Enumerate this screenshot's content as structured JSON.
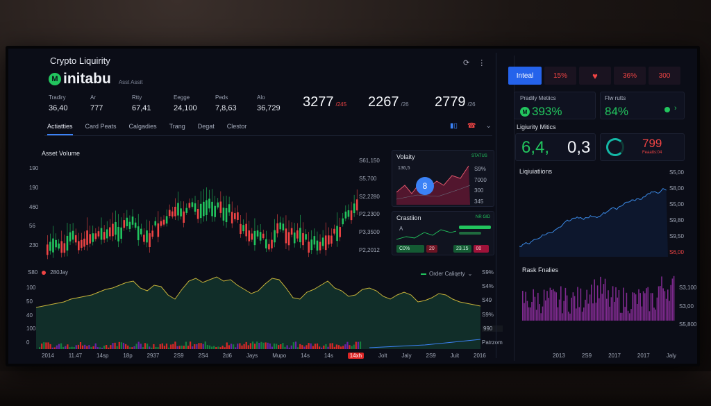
{
  "app": {
    "title": "Crypto Liquirity",
    "brand": "initabu",
    "brand_logo_glyph": "M",
    "brand_subtitle": "Asst Assit",
    "header_icons": [
      "refresh-icon",
      "more-icon"
    ]
  },
  "stats": [
    {
      "label": "Tradiry",
      "value": "36,40"
    },
    {
      "label": "Ar",
      "value": "777"
    },
    {
      "label": "Rtty",
      "value": "67,41"
    },
    {
      "label": "Eegge",
      "value": "24,100"
    },
    {
      "label": "Peds",
      "value": "7,8,63"
    },
    {
      "label": "Alo",
      "value": "36,729"
    }
  ],
  "big_stats": [
    {
      "value": "3277",
      "suffix": "/245",
      "suffix_color": "#ef4444"
    },
    {
      "value": "2267",
      "suffix": "/26"
    },
    {
      "value": "2779",
      "suffix": "/26"
    }
  ],
  "tabs": [
    "Actiatties",
    "Card Peats",
    "Calgadies",
    "Trang",
    "Degat",
    "Clestor"
  ],
  "tab_icons": [
    "signal-icon",
    "phone-icon",
    "chevron-down-icon"
  ],
  "main_chart": {
    "title": "Asset Volume",
    "y_left": [
      "190",
      "190",
      "460",
      "56",
      "230"
    ],
    "y_right": [
      "S61,150",
      "S5,700",
      "S2,2280",
      "P2,2300",
      "P3,3500",
      "P2,2012"
    ]
  },
  "volatility": {
    "title": "Volaity",
    "tag": "STATUS",
    "value_label": "136,5",
    "badge": "8",
    "y_right": [
      "S9%",
      "7000",
      "300",
      "345"
    ]
  },
  "crastion": {
    "title": "Crastiion",
    "tag": "NR GID",
    "marker": "A",
    "pills_left": [
      "C0%",
      "20"
    ],
    "pills_right": [
      "23.15",
      "00"
    ]
  },
  "lower_chart": {
    "legend_left_value": "S80",
    "legend_dot_label": "280Jay",
    "legend_right": "Order Caliqety",
    "y_left": [
      "100",
      "50",
      "40",
      "100",
      "0"
    ],
    "y_right": [
      "S9%",
      "S4%",
      "S49",
      "S9%",
      "990",
      "Patrzom"
    ]
  },
  "x_axis": [
    "2014",
    "11.47",
    "14sp",
    "18p",
    "2937",
    "2S9",
    "2S4",
    "2d6",
    "Jays",
    "Mupo",
    "14s",
    "14s",
    "14xh",
    "Jolt",
    "Jaly",
    "2S9",
    "Juit",
    "2016"
  ],
  "x_axis_highlight_index": 12,
  "right": {
    "buttons": [
      {
        "label": "Inteal",
        "bg": "#2563eb",
        "color": "#ffffff"
      },
      {
        "label": "15%",
        "bg": "#1a1320",
        "color": "#ef4444"
      },
      {
        "label": "heart-icon",
        "bg": "#1a1320",
        "color": "#ef4444"
      },
      {
        "label": "36%",
        "bg": "#1a1320",
        "color": "#ef4444"
      },
      {
        "label": "300",
        "bg": "#1a1320",
        "color": "#ef4444"
      }
    ],
    "liquidity_metrics": {
      "label": "Pradily Metiics",
      "value": "393%"
    },
    "flow": {
      "label": "Flw rutts",
      "value": "84%"
    },
    "lm_title": "Ligiurity Mitics",
    "lm_value_a": "6,4,",
    "lm_value_b": "0,3",
    "lm_value_c": "799",
    "lm_value_c_sub": "Feaatts:04",
    "liquidations": {
      "title": "Liqiuiatiions",
      "y": [
        "S5,00",
        "S8,00",
        "S5,00",
        "S9,80",
        "S9,50",
        "S6,00"
      ]
    },
    "risk": {
      "title": "Rask Fnalies",
      "y": [
        "S3,100",
        "S3,00",
        "S5,800"
      ],
      "x": [
        "2013",
        "2S9",
        "14slp",
        "2017",
        "2017",
        "Jaly"
      ]
    }
  },
  "colors": {
    "accent": "#3b82f6",
    "up": "#22c55e",
    "down": "#ef4444",
    "volatility_fill": "#7c1d3c",
    "risk_bars": "#7e2a8e"
  }
}
